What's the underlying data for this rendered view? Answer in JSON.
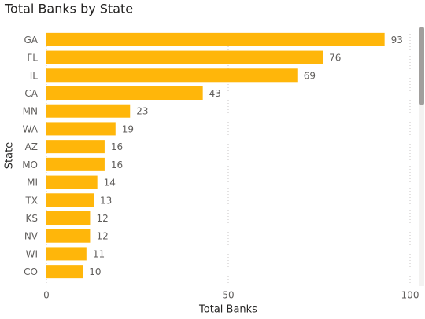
{
  "chart_data": {
    "type": "bar",
    "orientation": "horizontal",
    "title": "Total Banks by State",
    "x_label": "Total Banks",
    "y_label": "State",
    "categories": [
      "GA",
      "FL",
      "IL",
      "CA",
      "MN",
      "WA",
      "AZ",
      "MO",
      "MI",
      "TX",
      "KS",
      "NV",
      "WI",
      "CO"
    ],
    "values": [
      93,
      76,
      69,
      43,
      23,
      19,
      16,
      16,
      14,
      13,
      12,
      12,
      11,
      10
    ],
    "color": "#ffb60a",
    "xlim": [
      0,
      100
    ],
    "xticks": [
      0,
      50,
      100
    ],
    "grid": true
  }
}
